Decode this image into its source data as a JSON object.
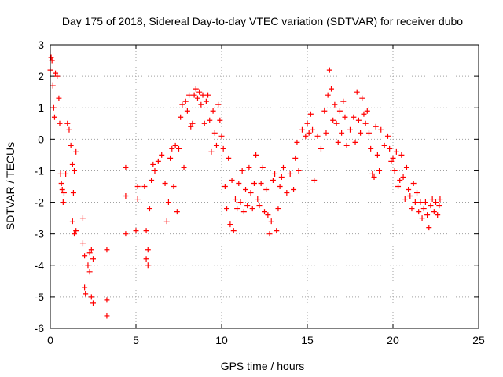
{
  "chart_data": {
    "type": "scatter",
    "title": "Day 175 of 2018, Sidereal Day-to-day VTEC variation (SDTVAR) for receiver dubo",
    "xlabel": "GPS time / hours",
    "ylabel": "SDTVAR / TECUs",
    "xlim": [
      0,
      25
    ],
    "ylim": [
      -6,
      3
    ],
    "xticks": [
      "0",
      "5",
      "10",
      "15",
      "20",
      "25"
    ],
    "yticks": [
      "-6",
      "-5",
      "-4",
      "-3",
      "-2",
      "-1",
      "0",
      "1",
      "2",
      "3"
    ],
    "grid": true,
    "marker": "+",
    "marker_color": "#ff0000",
    "series": [
      {
        "name": "SDTVAR",
        "points": [
          [
            0.0,
            2.2
          ],
          [
            0.05,
            2.6
          ],
          [
            0.1,
            2.5
          ],
          [
            0.15,
            1.7
          ],
          [
            0.2,
            1.0
          ],
          [
            0.25,
            0.7
          ],
          [
            0.3,
            2.1
          ],
          [
            0.4,
            2.0
          ],
          [
            0.5,
            1.3
          ],
          [
            0.55,
            0.5
          ],
          [
            0.6,
            -1.1
          ],
          [
            0.65,
            -1.4
          ],
          [
            0.7,
            -1.6
          ],
          [
            0.75,
            -2.0
          ],
          [
            0.8,
            -1.7
          ],
          [
            0.9,
            -1.1
          ],
          [
            1.0,
            0.5
          ],
          [
            1.1,
            0.3
          ],
          [
            1.2,
            -0.2
          ],
          [
            1.3,
            -0.8
          ],
          [
            1.35,
            -1.7
          ],
          [
            1.4,
            -1.0
          ],
          [
            1.5,
            -0.4
          ],
          [
            1.3,
            -2.6
          ],
          [
            1.4,
            -3.0
          ],
          [
            1.5,
            -2.9
          ],
          [
            1.9,
            -2.5
          ],
          [
            1.9,
            -3.3
          ],
          [
            2.0,
            -3.7
          ],
          [
            2.0,
            -4.7
          ],
          [
            2.05,
            -4.9
          ],
          [
            2.2,
            -4.0
          ],
          [
            2.3,
            -3.6
          ],
          [
            2.3,
            -4.2
          ],
          [
            2.4,
            -3.5
          ],
          [
            2.4,
            -5.0
          ],
          [
            2.5,
            -5.2
          ],
          [
            2.5,
            -3.8
          ],
          [
            3.3,
            -3.5
          ],
          [
            3.3,
            -5.1
          ],
          [
            3.3,
            -5.6
          ],
          [
            4.4,
            -0.9
          ],
          [
            4.4,
            -1.8
          ],
          [
            4.4,
            -3.0
          ],
          [
            5.0,
            -2.9
          ],
          [
            5.1,
            -1.5
          ],
          [
            5.1,
            -1.9
          ],
          [
            5.5,
            -1.5
          ],
          [
            5.6,
            -2.9
          ],
          [
            5.6,
            -3.8
          ],
          [
            5.7,
            -3.5
          ],
          [
            5.7,
            -4.0
          ],
          [
            5.8,
            -2.2
          ],
          [
            5.9,
            -1.3
          ],
          [
            6.0,
            -0.8
          ],
          [
            6.1,
            -1.0
          ],
          [
            6.3,
            -0.7
          ],
          [
            6.5,
            -0.5
          ],
          [
            6.7,
            -1.4
          ],
          [
            6.8,
            -2.6
          ],
          [
            6.9,
            -2.0
          ],
          [
            7.0,
            -0.6
          ],
          [
            7.1,
            -0.3
          ],
          [
            7.2,
            -1.5
          ],
          [
            7.3,
            -0.2
          ],
          [
            7.4,
            -2.3
          ],
          [
            7.5,
            -0.3
          ],
          [
            7.6,
            0.7
          ],
          [
            7.7,
            1.1
          ],
          [
            7.8,
            -0.9
          ],
          [
            7.9,
            1.2
          ],
          [
            8.0,
            0.9
          ],
          [
            8.1,
            1.4
          ],
          [
            8.2,
            0.4
          ],
          [
            8.3,
            0.5
          ],
          [
            8.4,
            1.4
          ],
          [
            8.5,
            1.6
          ],
          [
            8.6,
            1.3
          ],
          [
            8.7,
            1.5
          ],
          [
            8.8,
            1.1
          ],
          [
            8.9,
            1.4
          ],
          [
            9.0,
            0.5
          ],
          [
            9.1,
            1.2
          ],
          [
            9.2,
            1.4
          ],
          [
            9.3,
            0.6
          ],
          [
            9.4,
            -0.4
          ],
          [
            9.5,
            0.9
          ],
          [
            9.6,
            0.2
          ],
          [
            9.7,
            -0.2
          ],
          [
            9.8,
            1.1
          ],
          [
            9.9,
            0.6
          ],
          [
            10.0,
            0.1
          ],
          [
            10.1,
            -0.3
          ],
          [
            10.2,
            -1.5
          ],
          [
            10.3,
            -2.2
          ],
          [
            10.4,
            -0.6
          ],
          [
            10.5,
            -2.7
          ],
          [
            10.6,
            -1.3
          ],
          [
            10.7,
            -2.9
          ],
          [
            10.8,
            -1.9
          ],
          [
            10.9,
            -2.2
          ],
          [
            11.0,
            -1.4
          ],
          [
            11.1,
            -2.0
          ],
          [
            11.2,
            -1.0
          ],
          [
            11.3,
            -2.3
          ],
          [
            11.4,
            -1.6
          ],
          [
            11.5,
            -2.1
          ],
          [
            11.6,
            -0.9
          ],
          [
            11.7,
            -1.7
          ],
          [
            11.8,
            -2.2
          ],
          [
            11.9,
            -1.4
          ],
          [
            12.0,
            -0.5
          ],
          [
            12.1,
            -1.9
          ],
          [
            12.2,
            -2.1
          ],
          [
            12.3,
            -1.4
          ],
          [
            12.4,
            -0.9
          ],
          [
            12.5,
            -2.3
          ],
          [
            12.6,
            -1.6
          ],
          [
            12.7,
            -2.4
          ],
          [
            12.8,
            -3.0
          ],
          [
            12.9,
            -2.6
          ],
          [
            13.0,
            -1.3
          ],
          [
            13.1,
            -1.1
          ],
          [
            13.2,
            -2.9
          ],
          [
            13.3,
            -2.2
          ],
          [
            13.4,
            -1.5
          ],
          [
            13.5,
            -1.2
          ],
          [
            13.6,
            -0.9
          ],
          [
            13.8,
            -1.7
          ],
          [
            14.0,
            -1.1
          ],
          [
            14.2,
            -1.6
          ],
          [
            14.3,
            -0.6
          ],
          [
            14.4,
            -0.1
          ],
          [
            14.5,
            -1.0
          ],
          [
            14.7,
            0.3
          ],
          [
            14.9,
            0.1
          ],
          [
            15.0,
            0.5
          ],
          [
            15.1,
            0.2
          ],
          [
            15.2,
            0.8
          ],
          [
            15.3,
            0.3
          ],
          [
            15.4,
            -1.3
          ],
          [
            15.6,
            0.1
          ],
          [
            15.8,
            -0.3
          ],
          [
            16.0,
            0.9
          ],
          [
            16.1,
            0.2
          ],
          [
            16.2,
            1.4
          ],
          [
            16.3,
            2.2
          ],
          [
            16.4,
            1.6
          ],
          [
            16.5,
            0.6
          ],
          [
            16.6,
            1.1
          ],
          [
            16.7,
            0.5
          ],
          [
            16.8,
            -0.1
          ],
          [
            16.9,
            0.9
          ],
          [
            17.0,
            0.2
          ],
          [
            17.1,
            1.2
          ],
          [
            17.2,
            0.7
          ],
          [
            17.3,
            -0.2
          ],
          [
            17.5,
            0.3
          ],
          [
            17.7,
            0.7
          ],
          [
            17.8,
            -0.1
          ],
          [
            17.9,
            1.5
          ],
          [
            18.0,
            0.6
          ],
          [
            18.1,
            0.2
          ],
          [
            18.2,
            1.3
          ],
          [
            18.3,
            0.8
          ],
          [
            18.4,
            0.5
          ],
          [
            18.5,
            0.9
          ],
          [
            18.6,
            0.2
          ],
          [
            18.7,
            -0.3
          ],
          [
            18.8,
            -1.1
          ],
          [
            18.9,
            -1.2
          ],
          [
            19.0,
            0.4
          ],
          [
            19.1,
            -0.5
          ],
          [
            19.2,
            -1.0
          ],
          [
            19.3,
            0.3
          ],
          [
            19.5,
            -0.2
          ],
          [
            19.7,
            0.1
          ],
          [
            19.8,
            -0.3
          ],
          [
            19.9,
            -0.7
          ],
          [
            20.0,
            -0.6
          ],
          [
            20.1,
            -1.0
          ],
          [
            20.2,
            -0.4
          ],
          [
            20.3,
            -1.5
          ],
          [
            20.4,
            -1.3
          ],
          [
            20.5,
            -0.5
          ],
          [
            20.6,
            -1.2
          ],
          [
            20.7,
            -1.9
          ],
          [
            20.8,
            -0.9
          ],
          [
            20.9,
            -1.6
          ],
          [
            21.0,
            -1.8
          ],
          [
            21.1,
            -2.2
          ],
          [
            21.2,
            -1.4
          ],
          [
            21.3,
            -2.0
          ],
          [
            21.4,
            -1.7
          ],
          [
            21.5,
            -2.3
          ],
          [
            21.6,
            -2.0
          ],
          [
            21.7,
            -2.5
          ],
          [
            21.8,
            -2.2
          ],
          [
            21.9,
            -2.0
          ],
          [
            22.0,
            -2.4
          ],
          [
            22.1,
            -2.8
          ],
          [
            22.2,
            -2.1
          ],
          [
            22.3,
            -1.9
          ],
          [
            22.4,
            -2.3
          ],
          [
            22.5,
            -2.0
          ],
          [
            22.6,
            -2.4
          ],
          [
            22.7,
            -2.1
          ],
          [
            22.75,
            -1.9
          ]
        ]
      }
    ]
  }
}
